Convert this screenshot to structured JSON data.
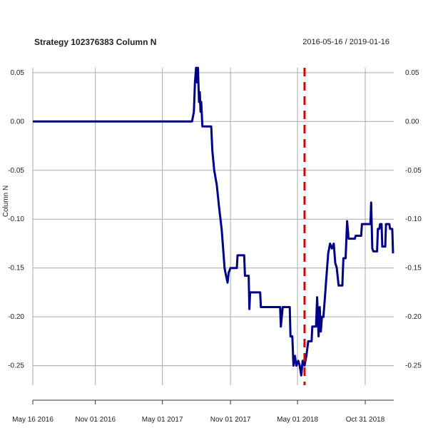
{
  "chart_data": {
    "type": "line",
    "title": "Strategy 102376383 Column N",
    "date_range": "2016-05-16 / 2019-01-16",
    "ylabel": "Column N",
    "xlabel": "",
    "x_ticks": [
      {
        "label": "May 16 2016",
        "date": "2016-05-16"
      },
      {
        "label": "Nov 01 2016",
        "date": "2016-11-01"
      },
      {
        "label": "May 01 2017",
        "date": "2017-05-01"
      },
      {
        "label": "Nov 01 2017",
        "date": "2017-11-01"
      },
      {
        "label": "May 01 2018",
        "date": "2018-05-01"
      },
      {
        "label": "Oct 31 2018",
        "date": "2018-10-31"
      }
    ],
    "y_ticks": [
      0.05,
      0.0,
      -0.05,
      -0.1,
      -0.15,
      -0.2,
      -0.25
    ],
    "y_tick_labels": [
      "0.05",
      "0.00",
      "-0.05",
      "-0.10",
      "-0.15",
      "-0.20",
      "-0.25"
    ],
    "xlim": [
      "2016-05-16",
      "2019-01-16"
    ],
    "ylim": [
      -0.27,
      0.055
    ],
    "grid": true,
    "colors": {
      "series": "#00008B",
      "marker": "#DD0000",
      "grid": "#AAAAAA"
    },
    "marker_line": {
      "date": "2018-05-20",
      "style": "dashed"
    },
    "series": [
      {
        "values": [
          [
            "2016-05-16",
            0.0
          ],
          [
            "2017-07-20",
            0.0
          ],
          [
            "2017-07-25",
            0.01
          ],
          [
            "2017-07-28",
            0.04
          ],
          [
            "2017-07-31",
            0.055
          ],
          [
            "2017-08-03",
            0.04
          ],
          [
            "2017-08-05",
            0.055
          ],
          [
            "2017-08-08",
            0.02
          ],
          [
            "2017-08-10",
            0.03
          ],
          [
            "2017-08-12",
            0.01
          ],
          [
            "2017-08-14",
            0.02
          ],
          [
            "2017-08-17",
            -0.005
          ],
          [
            "2017-09-10",
            -0.005
          ],
          [
            "2017-09-13",
            -0.03
          ],
          [
            "2017-09-18",
            -0.05
          ],
          [
            "2017-09-25",
            -0.065
          ],
          [
            "2017-10-01",
            -0.087
          ],
          [
            "2017-10-08",
            -0.11
          ],
          [
            "2017-10-12",
            -0.13
          ],
          [
            "2017-10-16",
            -0.15
          ],
          [
            "2017-10-20",
            -0.158
          ],
          [
            "2017-10-24",
            -0.165
          ],
          [
            "2017-10-27",
            -0.155
          ],
          [
            "2017-11-01",
            -0.15
          ],
          [
            "2017-11-18",
            -0.15
          ],
          [
            "2017-11-20",
            -0.137
          ],
          [
            "2017-12-08",
            -0.137
          ],
          [
            "2017-12-10",
            -0.158
          ],
          [
            "2017-12-20",
            -0.158
          ],
          [
            "2017-12-22",
            -0.192
          ],
          [
            "2017-12-24",
            -0.175
          ],
          [
            "2018-01-20",
            -0.175
          ],
          [
            "2018-01-22",
            -0.19
          ],
          [
            "2018-03-15",
            -0.19
          ],
          [
            "2018-03-17",
            -0.21
          ],
          [
            "2018-03-22",
            -0.19
          ],
          [
            "2018-04-10",
            -0.19
          ],
          [
            "2018-04-12",
            -0.22
          ],
          [
            "2018-04-17",
            -0.22
          ],
          [
            "2018-04-20",
            -0.25
          ],
          [
            "2018-04-24",
            -0.24
          ],
          [
            "2018-04-28",
            -0.25
          ],
          [
            "2018-05-03",
            -0.245
          ],
          [
            "2018-05-07",
            -0.25
          ],
          [
            "2018-05-11",
            -0.26
          ],
          [
            "2018-05-15",
            -0.245
          ],
          [
            "2018-05-20",
            -0.25
          ],
          [
            "2018-05-25",
            -0.24
          ],
          [
            "2018-05-30",
            -0.225
          ],
          [
            "2018-06-08",
            -0.225
          ],
          [
            "2018-06-10",
            -0.21
          ],
          [
            "2018-06-20",
            -0.21
          ],
          [
            "2018-06-23",
            -0.18
          ],
          [
            "2018-06-25",
            -0.2
          ],
          [
            "2018-06-27",
            -0.22
          ],
          [
            "2018-06-30",
            -0.19
          ],
          [
            "2018-07-03",
            -0.215
          ],
          [
            "2018-07-06",
            -0.2
          ],
          [
            "2018-07-10",
            -0.2
          ],
          [
            "2018-07-14",
            -0.18
          ],
          [
            "2018-07-18",
            -0.16
          ],
          [
            "2018-07-23",
            -0.135
          ],
          [
            "2018-07-28",
            -0.125
          ],
          [
            "2018-08-02",
            -0.13
          ],
          [
            "2018-08-07",
            -0.125
          ],
          [
            "2018-08-11",
            -0.145
          ],
          [
            "2018-08-15",
            -0.15
          ],
          [
            "2018-08-20",
            -0.168
          ],
          [
            "2018-08-30",
            -0.168
          ],
          [
            "2018-09-02",
            -0.14
          ],
          [
            "2018-09-08",
            -0.14
          ],
          [
            "2018-09-12",
            -0.102
          ],
          [
            "2018-09-16",
            -0.12
          ],
          [
            "2018-10-03",
            -0.12
          ],
          [
            "2018-10-05",
            -0.117
          ],
          [
            "2018-10-20",
            -0.117
          ],
          [
            "2018-10-22",
            -0.105
          ],
          [
            "2018-11-14",
            -0.105
          ],
          [
            "2018-11-16",
            -0.083
          ],
          [
            "2018-11-19",
            -0.13
          ],
          [
            "2018-11-22",
            -0.133
          ],
          [
            "2018-12-02",
            -0.133
          ],
          [
            "2018-12-04",
            -0.11
          ],
          [
            "2018-12-08",
            -0.11
          ],
          [
            "2018-12-10",
            -0.105
          ],
          [
            "2018-12-14",
            -0.105
          ],
          [
            "2018-12-16",
            -0.128
          ],
          [
            "2018-12-24",
            -0.128
          ],
          [
            "2018-12-26",
            -0.105
          ],
          [
            "2019-01-04",
            -0.105
          ],
          [
            "2019-01-06",
            -0.11
          ],
          [
            "2019-01-12",
            -0.11
          ],
          [
            "2019-01-14",
            -0.135
          ]
        ]
      }
    ]
  }
}
